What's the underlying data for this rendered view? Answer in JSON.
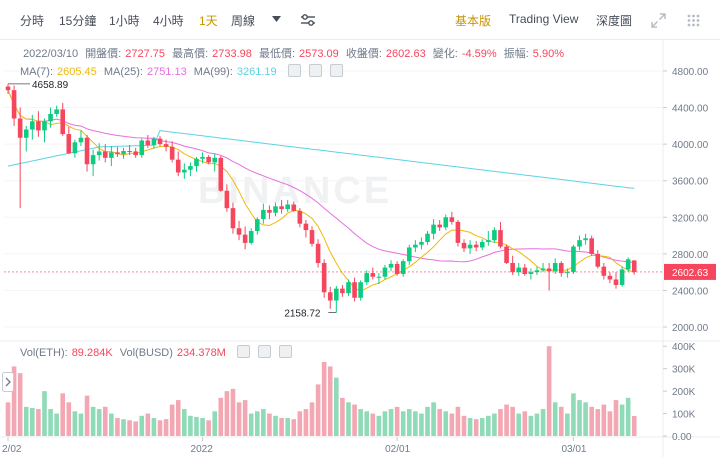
{
  "toolbar": {
    "intervals": [
      "分時",
      "15分鐘",
      "1小時",
      "4小時",
      "1天",
      "周線"
    ],
    "active_interval": "1天",
    "views": [
      "基本版",
      "Trading View",
      "深度圖"
    ],
    "active_view": "基本版"
  },
  "ohlc": {
    "date": "2022/03/10",
    "open_label": "開盤價:",
    "open": "2727.75",
    "high_label": "最高價:",
    "high": "2733.98",
    "low_label": "最低價:",
    "low": "2573.09",
    "close_label": "收盤價:",
    "close": "2602.63",
    "change_label": "變化:",
    "change": "-4.59%",
    "amplitude_label": "振幅:",
    "amplitude": "5.90%"
  },
  "ma": {
    "ma7_label": "MA(7):",
    "ma7": "2605.45",
    "ma25_label": "MA(25):",
    "ma25": "2751.13",
    "ma99_label": "MA(99):",
    "ma99": "3261.19"
  },
  "vol": {
    "eth_label": "Vol(ETH):",
    "eth": "89.284K",
    "busd_label": "Vol(BUSD)",
    "busd": "234.378M"
  },
  "watermark": "BINANCE",
  "colors": {
    "up": "#0ecb81",
    "down": "#f6465d",
    "up_vol": "#8fdab7",
    "down_vol": "#f3a7b2",
    "ma7": "#f0b90b",
    "ma25": "#e76fe0",
    "ma99": "#5bd3e5",
    "accent": "#c99400"
  },
  "chart_data": {
    "type": "candlestick",
    "price_axis": {
      "ticks": [
        4800,
        4400,
        4000,
        3600,
        3200,
        2800,
        2400,
        2000
      ],
      "ylim": [
        1880,
        4920
      ]
    },
    "volume_axis": {
      "ticks": [
        "400K",
        "300K",
        "200K",
        "100K",
        "0.00"
      ],
      "ylim": [
        0,
        410000
      ]
    },
    "x_ticks": [
      "2/02",
      "2022",
      "02/01",
      "03/01"
    ],
    "last_price": "2602.63",
    "high_marker": "4658.89",
    "low_marker": "2158.72",
    "candles": [
      [
        4630,
        4658.89,
        4550,
        4590,
        150000
      ],
      [
        4590,
        4640,
        4200,
        4280,
        310000
      ],
      [
        4280,
        4400,
        3300,
        4070,
        280000
      ],
      [
        4070,
        4200,
        3920,
        4160,
        130000
      ],
      [
        4160,
        4320,
        4050,
        4250,
        125000
      ],
      [
        4250,
        4360,
        4080,
        4150,
        120000
      ],
      [
        4150,
        4280,
        4020,
        4250,
        200000
      ],
      [
        4250,
        4400,
        4180,
        4330,
        120000
      ],
      [
        4330,
        4420,
        4300,
        4380,
        100000
      ],
      [
        4380,
        4450,
        4090,
        4110,
        190000
      ],
      [
        4110,
        4190,
        3890,
        3900,
        150000
      ],
      [
        3900,
        4050,
        3850,
        4020,
        110000
      ],
      [
        4020,
        4150,
        3980,
        4070,
        100000
      ],
      [
        4070,
        4100,
        3700,
        3780,
        180000
      ],
      [
        3780,
        3940,
        3650,
        3880,
        130000
      ],
      [
        3880,
        4010,
        3820,
        3920,
        120000
      ],
      [
        3920,
        4000,
        3800,
        3850,
        130000
      ],
      [
        3850,
        3980,
        3760,
        3910,
        100000
      ],
      [
        3910,
        3970,
        3860,
        3890,
        80000
      ],
      [
        3890,
        3960,
        3840,
        3925,
        75000
      ],
      [
        3925,
        3990,
        3880,
        3920,
        70000
      ],
      [
        3920,
        3960,
        3850,
        3880,
        65000
      ],
      [
        3880,
        4060,
        3850,
        4040,
        90000
      ],
      [
        4040,
        4100,
        3960,
        3990,
        100000
      ],
      [
        3990,
        4080,
        3950,
        4060,
        80000
      ],
      [
        4060,
        4090,
        3980,
        4000,
        70000
      ],
      [
        4000,
        4050,
        3920,
        3970,
        75000
      ],
      [
        3970,
        4030,
        3800,
        3830,
        140000
      ],
      [
        3830,
        3920,
        3650,
        3690,
        160000
      ],
      [
        3690,
        3790,
        3620,
        3720,
        120000
      ],
      [
        3720,
        3800,
        3650,
        3760,
        90000
      ],
      [
        3760,
        3860,
        3700,
        3840,
        85000
      ],
      [
        3840,
        3910,
        3790,
        3860,
        80000
      ],
      [
        3860,
        3880,
        3780,
        3800,
        70000
      ],
      [
        3800,
        3900,
        3700,
        3850,
        110000
      ],
      [
        3850,
        3870,
        3480,
        3490,
        170000
      ],
      [
        3490,
        3560,
        3260,
        3300,
        200000
      ],
      [
        3300,
        3360,
        3020,
        3080,
        210000
      ],
      [
        3080,
        3160,
        2950,
        3010,
        150000
      ],
      [
        3010,
        3100,
        2850,
        2920,
        160000
      ],
      [
        2920,
        3080,
        2900,
        3050,
        100000
      ],
      [
        3050,
        3200,
        3010,
        3180,
        110000
      ],
      [
        3180,
        3350,
        3130,
        3280,
        120000
      ],
      [
        3280,
        3330,
        3180,
        3250,
        100000
      ],
      [
        3250,
        3360,
        3210,
        3320,
        90000
      ],
      [
        3320,
        3390,
        3240,
        3290,
        80000
      ],
      [
        3290,
        3390,
        3260,
        3340,
        80000
      ],
      [
        3340,
        3370,
        3260,
        3270,
        75000
      ],
      [
        3270,
        3300,
        3090,
        3130,
        110000
      ],
      [
        3130,
        3170,
        2980,
        3060,
        120000
      ],
      [
        3060,
        3100,
        2880,
        2910,
        150000
      ],
      [
        2910,
        2960,
        2650,
        2700,
        230000
      ],
      [
        2700,
        2740,
        2320,
        2380,
        330000
      ],
      [
        2380,
        2440,
        2200,
        2290,
        310000
      ],
      [
        2290,
        2450,
        2158.72,
        2420,
        260000
      ],
      [
        2420,
        2460,
        2330,
        2370,
        170000
      ],
      [
        2370,
        2520,
        2340,
        2490,
        150000
      ],
      [
        2490,
        2540,
        2280,
        2320,
        140000
      ],
      [
        2320,
        2510,
        2290,
        2490,
        120000
      ],
      [
        2490,
        2620,
        2460,
        2590,
        110000
      ],
      [
        2590,
        2650,
        2520,
        2550,
        100000
      ],
      [
        2550,
        2590,
        2470,
        2550,
        90000
      ],
      [
        2550,
        2680,
        2520,
        2650,
        110000
      ],
      [
        2650,
        2730,
        2610,
        2690,
        120000
      ],
      [
        2690,
        2720,
        2560,
        2580,
        130000
      ],
      [
        2580,
        2740,
        2550,
        2720,
        110000
      ],
      [
        2720,
        2900,
        2680,
        2870,
        120000
      ],
      [
        2870,
        2950,
        2820,
        2900,
        110000
      ],
      [
        2900,
        2980,
        2850,
        2930,
        100000
      ],
      [
        2930,
        3050,
        2900,
        3020,
        130000
      ],
      [
        3020,
        3180,
        2960,
        3120,
        150000
      ],
      [
        3120,
        3170,
        3050,
        3090,
        120000
      ],
      [
        3090,
        3230,
        3060,
        3200,
        110000
      ],
      [
        3200,
        3260,
        3120,
        3150,
        100000
      ],
      [
        3150,
        3170,
        2880,
        2920,
        130000
      ],
      [
        2920,
        2960,
        2820,
        2860,
        90000
      ],
      [
        2860,
        2950,
        2800,
        2900,
        80000
      ],
      [
        2900,
        2940,
        2830,
        2870,
        75000
      ],
      [
        2870,
        2960,
        2840,
        2930,
        80000
      ],
      [
        2930,
        3050,
        2890,
        2950,
        90000
      ],
      [
        2950,
        3090,
        2920,
        3060,
        100000
      ],
      [
        3060,
        3150,
        2860,
        2880,
        120000
      ],
      [
        2880,
        2900,
        2690,
        2700,
        140000
      ],
      [
        2700,
        2780,
        2570,
        2600,
        130000
      ],
      [
        2600,
        2700,
        2560,
        2650,
        100000
      ],
      [
        2650,
        2690,
        2560,
        2580,
        110000
      ],
      [
        2580,
        2640,
        2520,
        2600,
        90000
      ],
      [
        2600,
        2660,
        2570,
        2620,
        100000
      ],
      [
        2620,
        2700,
        2600,
        2640,
        120000
      ],
      [
        2640,
        2700,
        2400,
        2610,
        400000
      ],
      [
        2610,
        2750,
        2580,
        2700,
        150000
      ],
      [
        2700,
        2720,
        2550,
        2590,
        130000
      ],
      [
        2590,
        2640,
        2540,
        2600,
        100000
      ],
      [
        2600,
        2900,
        2580,
        2880,
        190000
      ],
      [
        2880,
        3000,
        2840,
        2950,
        160000
      ],
      [
        2950,
        3020,
        2900,
        2970,
        150000
      ],
      [
        2970,
        3000,
        2780,
        2800,
        130000
      ],
      [
        2800,
        2840,
        2640,
        2660,
        120000
      ],
      [
        2660,
        2700,
        2520,
        2560,
        140000
      ],
      [
        2560,
        2600,
        2480,
        2520,
        110000
      ],
      [
        2520,
        2600,
        2420,
        2460,
        160000
      ],
      [
        2460,
        2660,
        2440,
        2630,
        140000
      ],
      [
        2630,
        2760,
        2600,
        2740,
        170000
      ],
      [
        2727.75,
        2733.98,
        2573.09,
        2602.63,
        89284
      ]
    ]
  }
}
